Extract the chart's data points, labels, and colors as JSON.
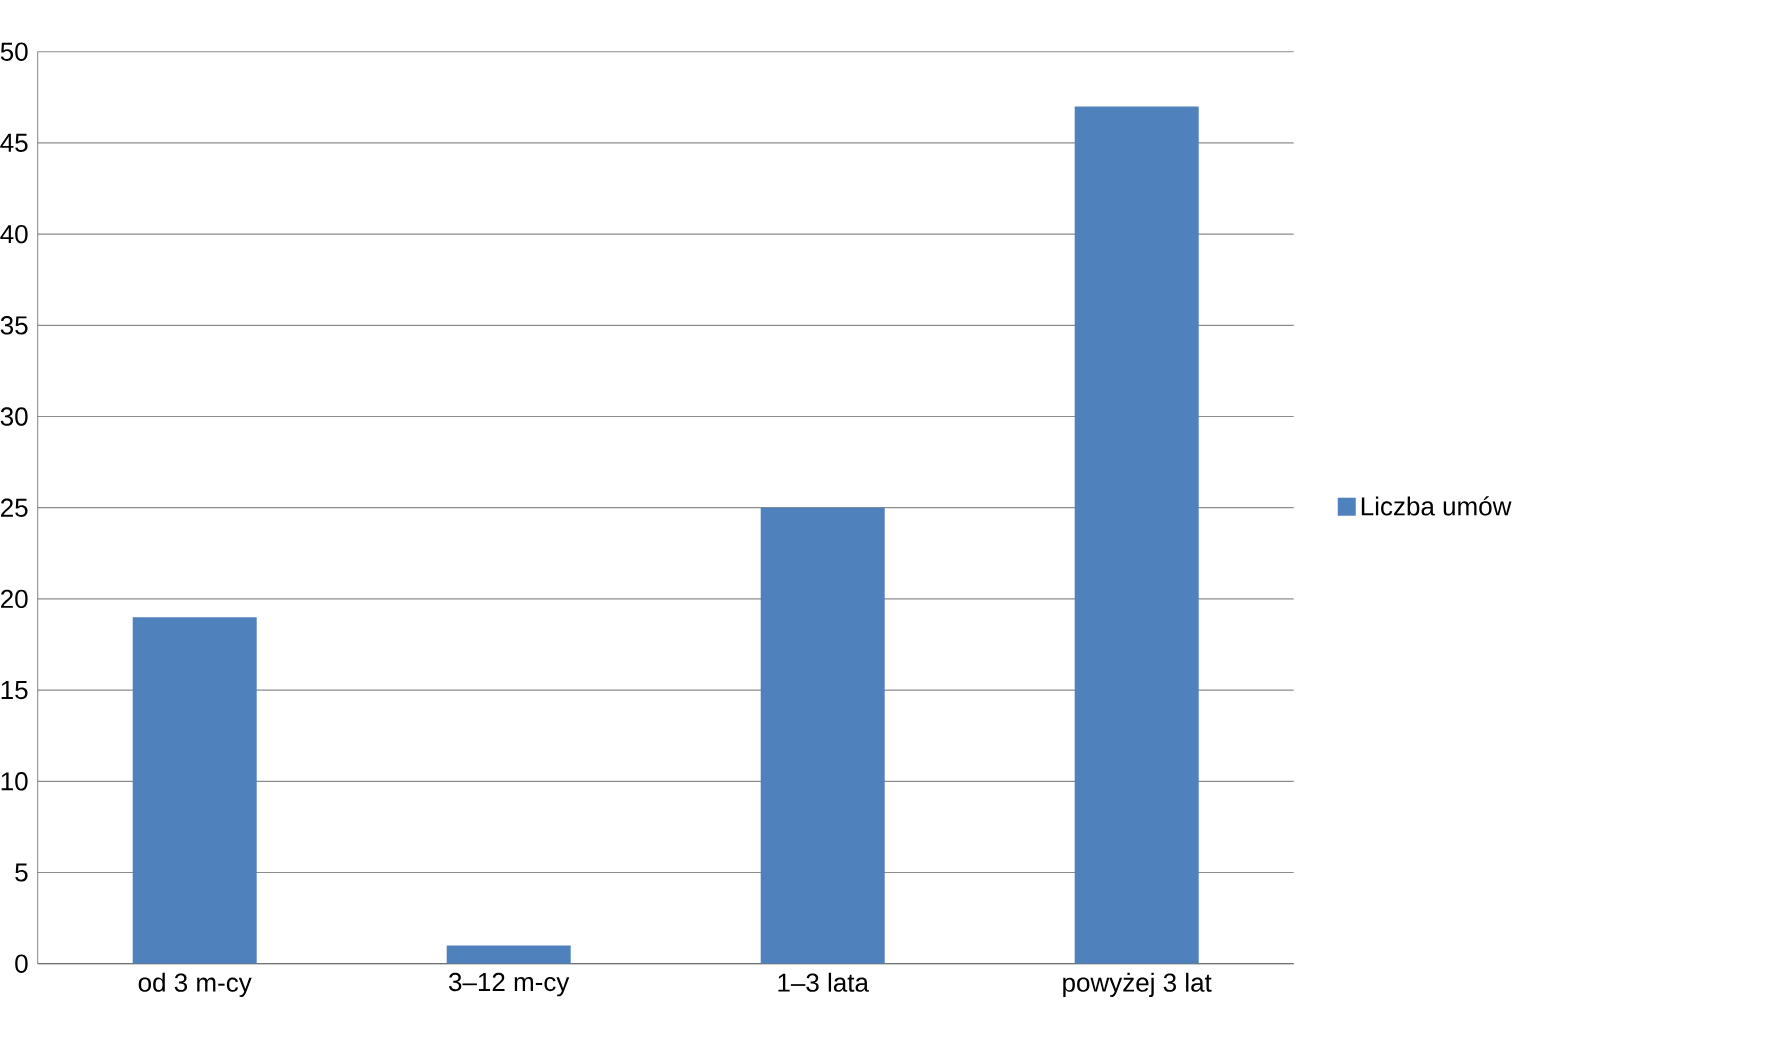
{
  "chart_data": {
    "type": "bar",
    "categories": [
      "od 3 m-cy",
      "3–12 m-cy",
      "1–3 lata",
      "powyżej 3 lat"
    ],
    "series": [
      {
        "name": "Liczba umów",
        "color": "#4f81bd",
        "values": [
          19,
          1,
          25,
          47
        ]
      }
    ],
    "ylim": [
      0,
      50
    ],
    "yticks": [
      0,
      5,
      10,
      15,
      20,
      25,
      30,
      35,
      40,
      45,
      50
    ],
    "grid": "y",
    "legend": "right"
  }
}
